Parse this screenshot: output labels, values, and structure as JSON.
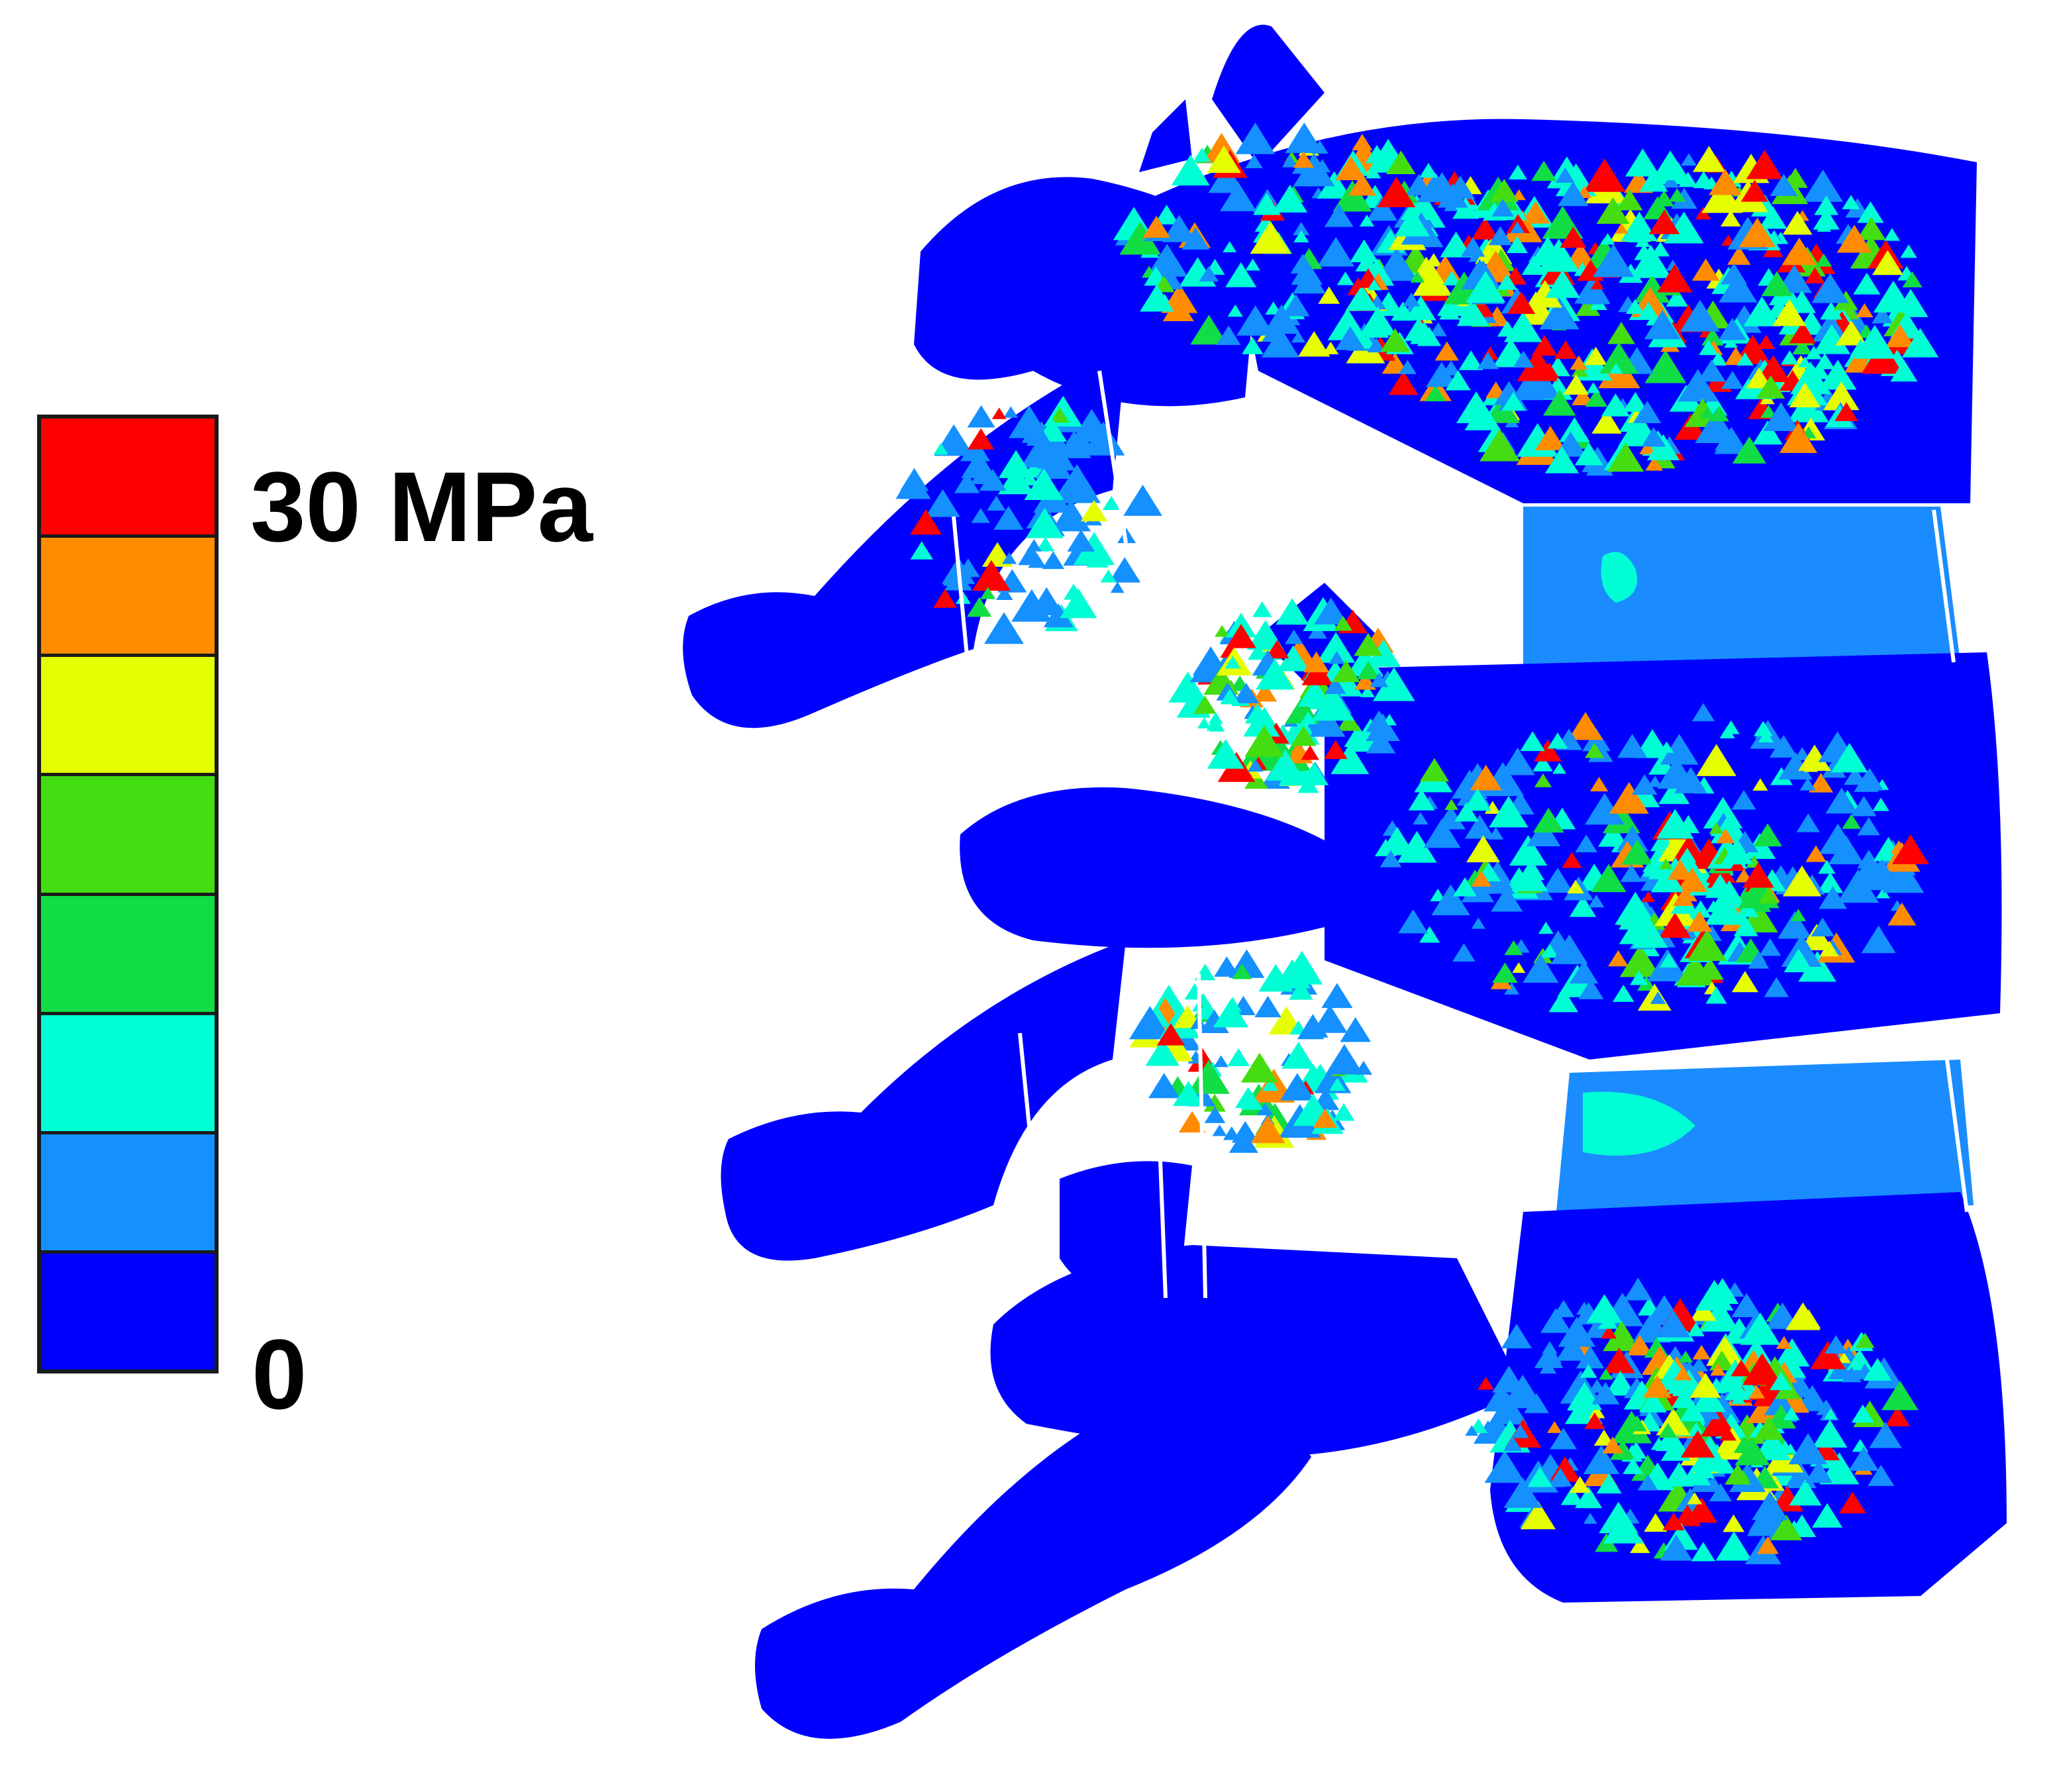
{
  "legend": {
    "max_label": "30 MPa",
    "min_label": "0",
    "bands": [
      "#ff0000",
      "#ff8c00",
      "#e6ff00",
      "#44dd11",
      "#11dd44",
      "#00ffd5",
      "#1490ff",
      "#0000ff"
    ]
  },
  "palette": {
    "base": "#0000ff",
    "mid": "#1490ff",
    "disc": "#1a8cff",
    "hot": [
      "#ff0000",
      "#ff8c00",
      "#e6ff00",
      "#44dd11",
      "#11dd44",
      "#00ffd5"
    ]
  }
}
